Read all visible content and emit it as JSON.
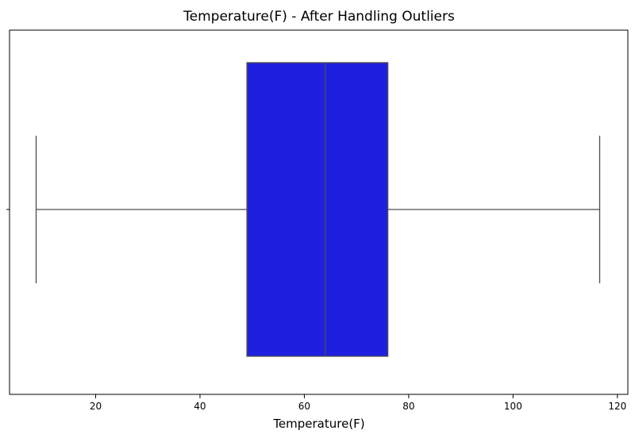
{
  "chart_data": {
    "type": "box",
    "title": "Temperature(F) - After Handling Outliers",
    "xlabel": "Temperature(F)",
    "ylabel": "",
    "orientation": "horizontal",
    "xlim": [
      3.5,
      122
    ],
    "xticks": [
      20,
      40,
      60,
      80,
      100,
      120
    ],
    "grid": false,
    "box": {
      "whisker_low": 8.6,
      "q1": 49.0,
      "median": 64.0,
      "q3": 76.0,
      "whisker_high": 116.6
    },
    "colors": {
      "box_fill": "#1f1fe0",
      "lines": "#4d4d4d",
      "axes": "#000000"
    }
  }
}
